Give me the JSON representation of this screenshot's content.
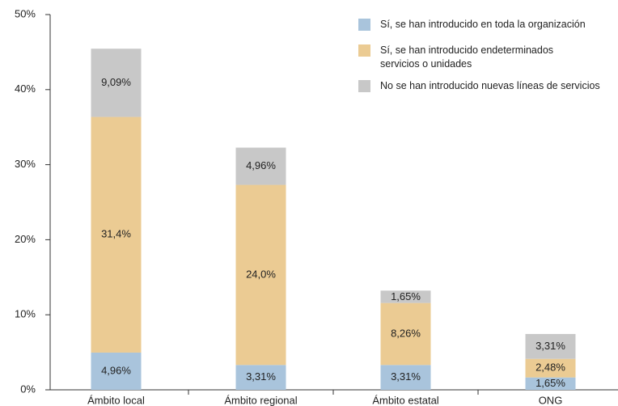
{
  "chart_data": {
    "type": "stacked_bar",
    "categories": [
      "Ámbito local",
      "Ámbito regional",
      "Ámbito estatal",
      "ONG"
    ],
    "series": [
      {
        "name": "Sí, se han introducido en toda la organización",
        "color": "#a9c4dc",
        "values": [
          4.96,
          3.31,
          3.31,
          1.65
        ],
        "value_labels": [
          "4,96%",
          "3,31%",
          "3,31%",
          "1,65%"
        ]
      },
      {
        "name": "Sí, se han introducido endeterminados servicios o unidades",
        "color": "#ebcb93",
        "values": [
          31.4,
          24.0,
          8.26,
          2.48
        ],
        "value_labels": [
          "31,4%",
          "24,0%",
          "8,26%",
          "2,48%"
        ]
      },
      {
        "name": "No se han introducido nuevas líneas de servicios",
        "color": "#c8c8c8",
        "values": [
          9.09,
          4.96,
          1.65,
          3.31
        ],
        "value_labels": [
          "9,09%",
          "4,96%",
          "1,65%",
          "3,31%"
        ]
      }
    ],
    "ylim": [
      0,
      50
    ],
    "yticks": [
      {
        "value": 0,
        "label": "0%"
      },
      {
        "value": 10,
        "label": "10%"
      },
      {
        "value": 20,
        "label": "20%"
      },
      {
        "value": 30,
        "label": "30%"
      },
      {
        "value": 40,
        "label": "40%"
      },
      {
        "value": 50,
        "label": "50%"
      }
    ],
    "grid": false,
    "legend": "top-right"
  }
}
